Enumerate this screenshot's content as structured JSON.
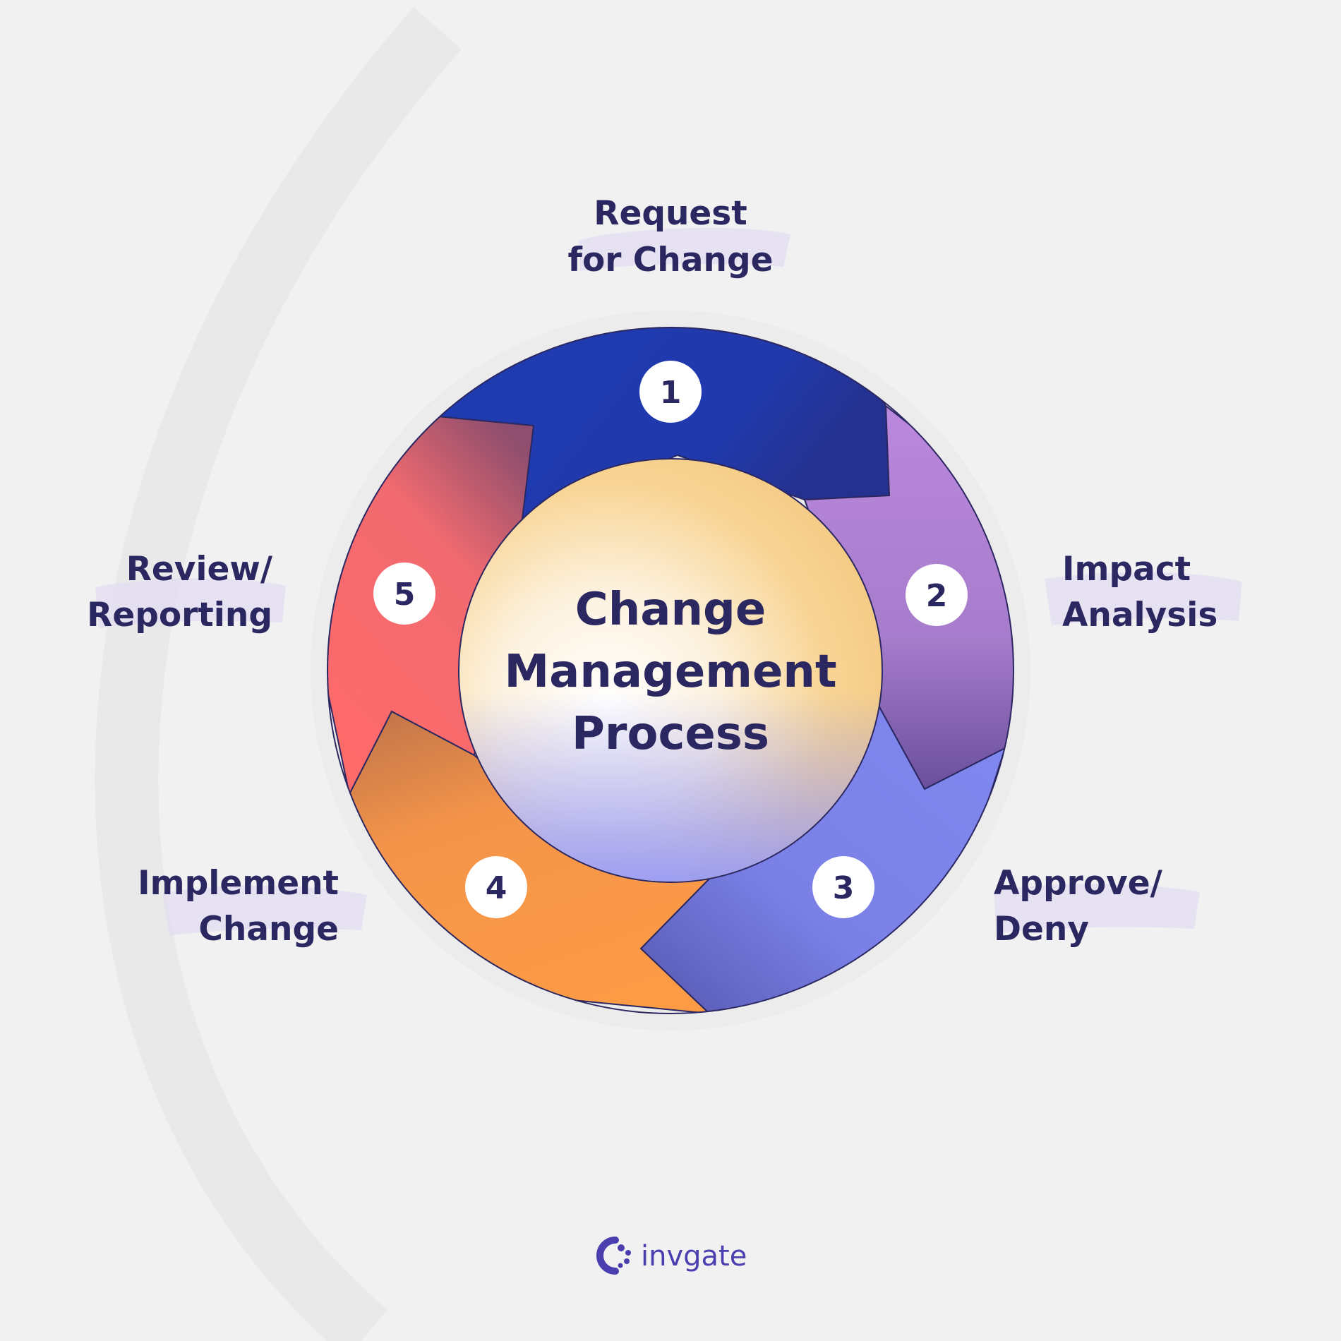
{
  "center": {
    "lines": [
      "Change",
      "Management",
      "Process"
    ]
  },
  "steps": [
    {
      "number": "1",
      "label_lines": [
        "Request",
        "for Change"
      ],
      "color": "#1f3ab0"
    },
    {
      "number": "2",
      "label_lines": [
        "Impact",
        "Analysis"
      ],
      "color": "#b585db"
    },
    {
      "number": "3",
      "label_lines": [
        "Approve/",
        "Deny"
      ],
      "color": "#7f88ee"
    },
    {
      "number": "4",
      "label_lines": [
        "Implement",
        "Change"
      ],
      "color": "#f8994a"
    },
    {
      "number": "5",
      "label_lines": [
        "Review/",
        "Reporting"
      ],
      "color": "#fb6a6c"
    }
  ],
  "brand": {
    "name": "invgate"
  }
}
